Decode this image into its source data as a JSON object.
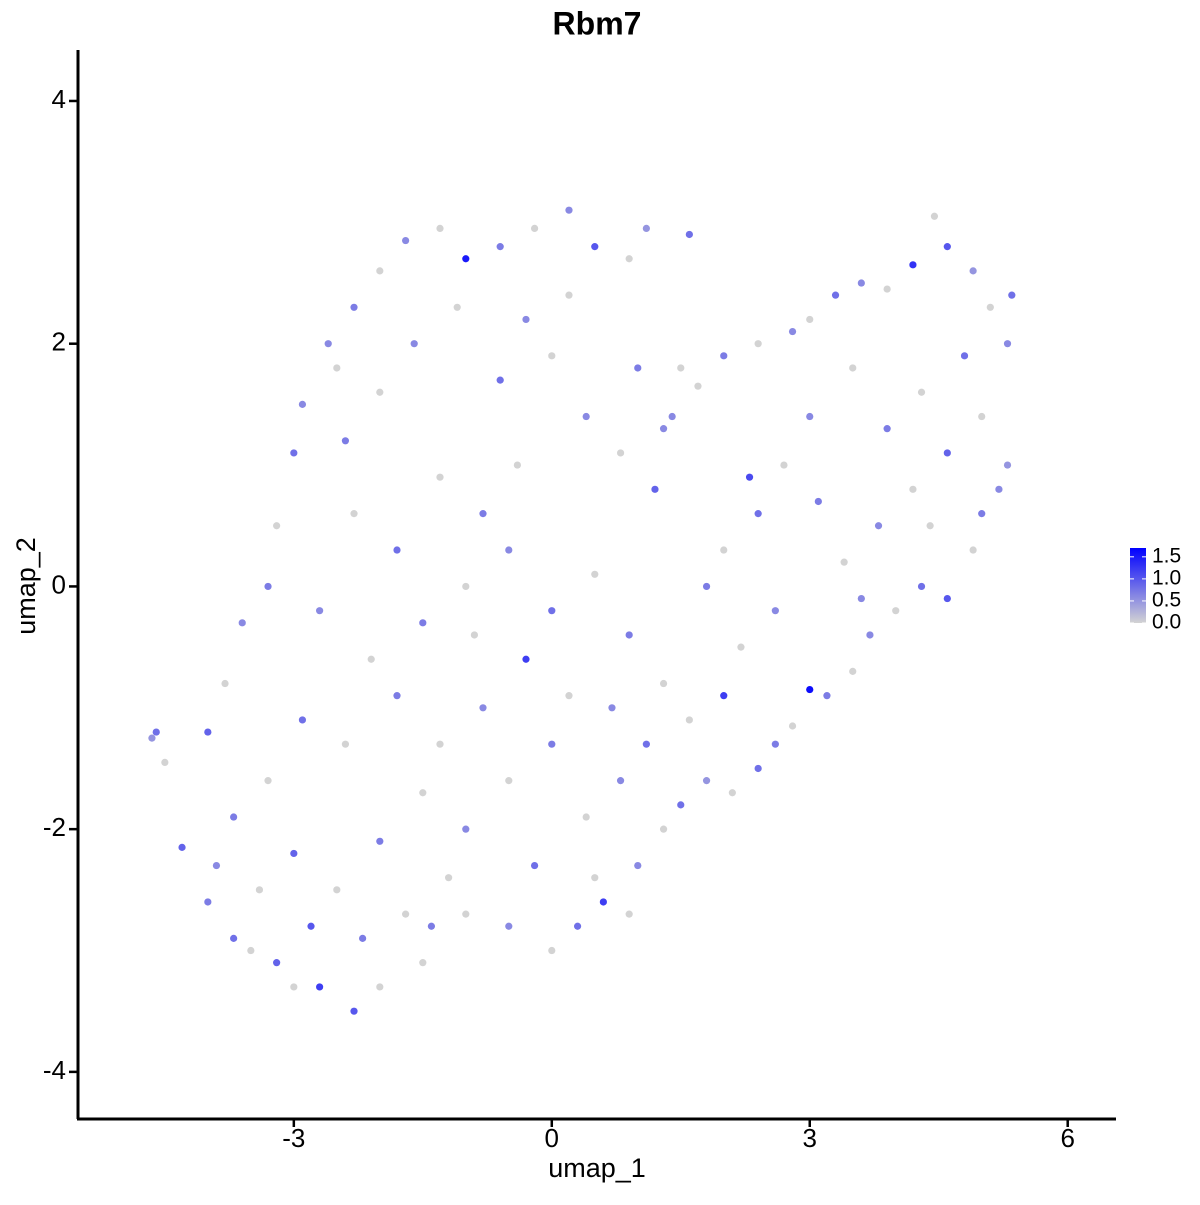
{
  "chart_data": {
    "type": "scatter",
    "title": "Rbm7",
    "x_label": "umap_1",
    "y_label": "umap_2",
    "xlim": [
      -5.51,
      6.55
    ],
    "ylim": [
      -4.38,
      4.42
    ],
    "xticks": [
      -3,
      0,
      3,
      6
    ],
    "yticks": [
      -4,
      -2,
      0,
      2,
      4
    ],
    "x": [
      -4.6,
      -4.65,
      -4.5,
      -4.3,
      -4.0,
      -3.7,
      -3.5,
      -3.2,
      -3.0,
      -2.7,
      -2.3,
      -2.0,
      -1.5,
      -1.4,
      -1.0,
      -0.5,
      0,
      0.3,
      0.6,
      0.9,
      1.0,
      1.3,
      1.5,
      1.8,
      2.1,
      2.4,
      2.6,
      2.8,
      3.0,
      3.2,
      3.5,
      3.7,
      4.0,
      4.3,
      4.6,
      4.9,
      5.0,
      5.2,
      5.3,
      5.3,
      5.35,
      5.1,
      4.9,
      4.6,
      4.45,
      4.2,
      3.9,
      3.6,
      3.3,
      3.0,
      2.8,
      2.4,
      2.0,
      1.7,
      1.4,
      3.0,
      3.5,
      3.9,
      4.3,
      4.8,
      5.0,
      4.6,
      4.2,
      3.8,
      3.4,
      3.1,
      2.7,
      2.4,
      2.0,
      1.8,
      2.2,
      2.6,
      3.6,
      4.4,
      2.3,
      -2.3,
      -2.0,
      -1.7,
      -1.3,
      -1.0,
      -0.6,
      -0.2,
      0.2,
      0.5,
      0.9,
      1.1,
      1.6,
      -2.5,
      -2.9,
      -3.0,
      -3.2,
      -3.3,
      -3.6,
      -3.8,
      -4.0,
      -2.4,
      -2.0,
      -1.6,
      -1.1,
      -0.6,
      0,
      0.4,
      0.8,
      1.2,
      1.3,
      -0.4,
      -0.8,
      -1.3,
      -1.8,
      -2.3,
      -2.7,
      -2.1,
      -1.5,
      -1.0,
      -0.5,
      0.0,
      0.5,
      0.9,
      1.3,
      0.7,
      0.2,
      -0.3,
      -0.8,
      -1.3,
      -1.8,
      -2.4,
      -2.9,
      -3.3,
      -3.7,
      -3.0,
      -2.5,
      -2.0,
      -1.5,
      -1.0,
      -0.5,
      0.0,
      0.4,
      0.8,
      -0.2,
      0.5,
      -1.2,
      -2.8,
      -3.4,
      -2.2,
      -1.7,
      -3.9,
      1.1,
      1.6,
      2.0,
      -0.9,
      -2.6,
      0.2,
      -0.3,
      1.5,
      1.0
    ],
    "y": [
      -1.2,
      -1.25,
      -1.45,
      -2.15,
      -2.6,
      -2.9,
      -3.0,
      -3.1,
      -3.3,
      -3.3,
      -3.5,
      -3.3,
      -3.1,
      -2.8,
      -2.7,
      -2.8,
      -3.0,
      -2.8,
      -2.6,
      -2.7,
      -2.3,
      -2.0,
      -1.8,
      -1.6,
      -1.7,
      -1.5,
      -1.3,
      -1.15,
      -0.85,
      -0.9,
      -0.7,
      -0.4,
      -0.2,
      0.0,
      -0.1,
      0.3,
      0.6,
      0.8,
      1.0,
      2.0,
      2.4,
      2.3,
      2.6,
      2.8,
      3.05,
      2.65,
      2.45,
      2.5,
      2.4,
      2.2,
      2.1,
      2.0,
      1.9,
      1.65,
      1.4,
      1.4,
      1.8,
      1.3,
      1.6,
      1.9,
      1.4,
      1.1,
      0.8,
      0.5,
      0.2,
      0.7,
      1.0,
      0.6,
      0.3,
      0.0,
      -0.5,
      -0.2,
      -0.1,
      0.5,
      0.9,
      2.3,
      2.6,
      2.85,
      2.95,
      2.7,
      2.8,
      2.95,
      3.1,
      2.8,
      2.7,
      2.95,
      2.9,
      1.8,
      1.5,
      1.1,
      0.5,
      0.0,
      -0.3,
      -0.8,
      -1.2,
      1.2,
      1.6,
      2.0,
      2.3,
      1.7,
      1.9,
      1.4,
      1.1,
      0.8,
      1.3,
      1.0,
      0.6,
      0.9,
      0.3,
      0.6,
      -0.2,
      -0.6,
      -0.3,
      0.0,
      0.3,
      -0.2,
      0.1,
      -0.4,
      -0.8,
      -1.0,
      -0.9,
      -0.6,
      -1.0,
      -1.3,
      -0.9,
      -1.3,
      -1.1,
      -1.6,
      -1.9,
      -2.2,
      -2.5,
      -2.1,
      -1.7,
      -2.0,
      -1.6,
      -1.3,
      -1.9,
      -1.6,
      -2.3,
      -2.4,
      -2.4,
      -2.8,
      -2.5,
      -2.9,
      -2.7,
      -2.3,
      -1.3,
      -1.1,
      -0.9,
      -0.4,
      2.0,
      2.4,
      2.2,
      1.8,
      1.8
    ],
    "expression": [
      0.8,
      0.5,
      0,
      0.9,
      0.7,
      0.8,
      0,
      0.9,
      0,
      1.2,
      1.0,
      0,
      0,
      0.7,
      0,
      0.6,
      0,
      0.8,
      1.2,
      0,
      0.6,
      0,
      0.8,
      0.5,
      0,
      0.8,
      0.7,
      0,
      1.6,
      0.7,
      0,
      0.6,
      0,
      0.8,
      1.0,
      0,
      0.7,
      0.6,
      0.5,
      0.6,
      0.8,
      0,
      0.5,
      1.0,
      0,
      1.3,
      0,
      0.6,
      0.8,
      0,
      0.6,
      0,
      0.7,
      0,
      0.6,
      0.6,
      0,
      0.7,
      0,
      0.8,
      0,
      0.9,
      0,
      0.6,
      0,
      0.7,
      0,
      0.8,
      0,
      0.7,
      0,
      0.6,
      0.6,
      0,
      1.1,
      0.7,
      0,
      0.6,
      0,
      1.5,
      0.7,
      0,
      0.6,
      1.0,
      0,
      0.5,
      0.8,
      0,
      0.6,
      0.8,
      0,
      0.7,
      0.6,
      0,
      0.9,
      0.7,
      0,
      0.6,
      0,
      0.8,
      0,
      0.6,
      0,
      0.9,
      0.6,
      0,
      0.7,
      0,
      0.8,
      0,
      0.6,
      0,
      0.7,
      0,
      0.6,
      0.8,
      0,
      0.7,
      0,
      0.6,
      0,
      1.2,
      0.6,
      0,
      0.7,
      0,
      0.8,
      0,
      0.7,
      0.9,
      0,
      0.7,
      0,
      0.6,
      0,
      0.7,
      0,
      0.6,
      0.8,
      0,
      0,
      1.0,
      0,
      0.7,
      0,
      0.6,
      0.8,
      0,
      1.2,
      0,
      0.6,
      0,
      0.6,
      0,
      0.7
    ],
    "color_scale": {
      "low": "#d3d3d3",
      "high": "#0000ff",
      "lim": [
        0,
        1.7
      ],
      "ticks": [
        {
          "value": 0,
          "label": "0.0"
        },
        {
          "value": 0.5,
          "label": "0.5"
        },
        {
          "value": 1,
          "label": "1.0"
        },
        {
          "value": 1.5,
          "label": "1.5"
        }
      ]
    }
  }
}
